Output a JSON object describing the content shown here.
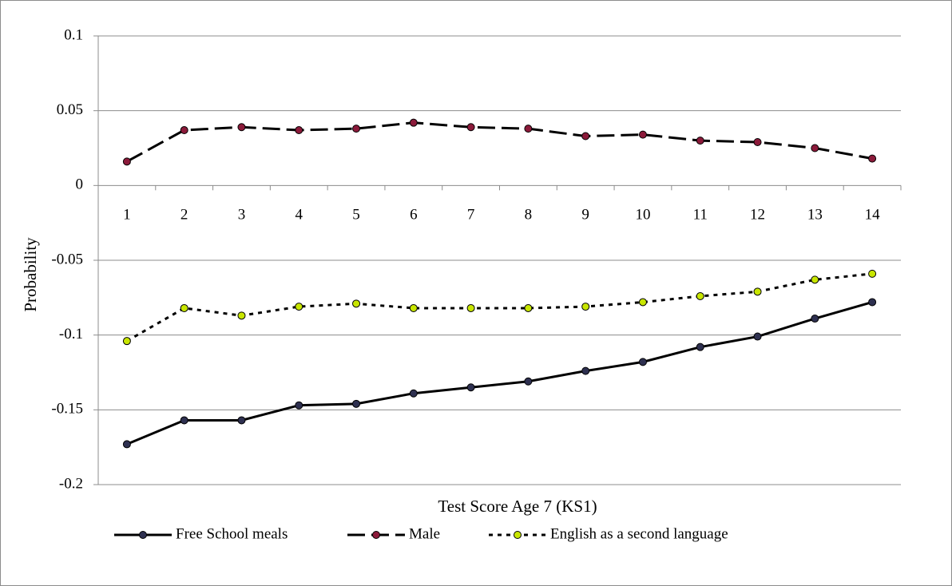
{
  "chart_data": {
    "type": "line",
    "x_label": "Test Score Age 7 (KS1)",
    "y_label": "Probability",
    "categories": [
      "1",
      "2",
      "3",
      "4",
      "5",
      "6",
      "7",
      "8",
      "9",
      "10",
      "11",
      "12",
      "13",
      "14"
    ],
    "ylim": [
      -0.2,
      0.1
    ],
    "yticks": [
      0.1,
      0.05,
      0,
      -0.05,
      -0.1,
      -0.15,
      -0.2
    ],
    "grid": true,
    "legend": "bottom",
    "series": [
      {
        "name": "Free School meals",
        "color": "#000000",
        "marker_color": "#2e3050",
        "dash": "solid",
        "values": [
          -0.173,
          -0.157,
          -0.157,
          -0.147,
          -0.146,
          -0.139,
          -0.135,
          -0.131,
          -0.124,
          -0.118,
          -0.108,
          -0.101,
          -0.089,
          -0.078
        ]
      },
      {
        "name": "Male",
        "color": "#000000",
        "marker_color": "#8b1a3a",
        "dash": "long",
        "values": [
          0.016,
          0.037,
          0.039,
          0.037,
          0.038,
          0.042,
          0.039,
          0.038,
          0.033,
          0.034,
          0.03,
          0.029,
          0.025,
          0.018
        ]
      },
      {
        "name": "English as a second language",
        "color": "#000000",
        "marker_color": "#c8e600",
        "dash": "dot",
        "values": [
          -0.104,
          -0.082,
          -0.087,
          -0.081,
          -0.079,
          -0.082,
          -0.082,
          -0.082,
          -0.081,
          -0.078,
          -0.074,
          -0.071,
          -0.063,
          -0.059
        ]
      }
    ]
  }
}
